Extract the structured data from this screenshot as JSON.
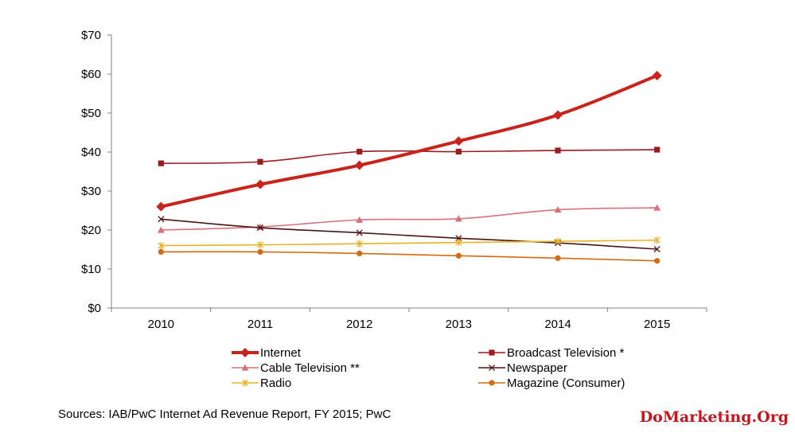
{
  "chart_data": {
    "type": "line",
    "x": [
      "2010",
      "2011",
      "2012",
      "2013",
      "2014",
      "2015"
    ],
    "y_ticks": [
      "$0",
      "$10",
      "$20",
      "$30",
      "$40",
      "$50",
      "$60",
      "$70"
    ],
    "ylim": [
      0,
      70
    ],
    "grid": false,
    "legend_position": "bottom",
    "series": [
      {
        "name": "Internet",
        "values": [
          26.0,
          31.7,
          36.6,
          42.8,
          49.5,
          59.6
        ],
        "color": "#c8241c",
        "marker": "diamond",
        "emphasis": true
      },
      {
        "name": "Broadcast Television *",
        "values": [
          37.1,
          37.5,
          40.1,
          40.1,
          40.4,
          40.6
        ],
        "color": "#9b1b1f",
        "marker": "square"
      },
      {
        "name": "Cable Television **",
        "values": [
          20.0,
          20.8,
          22.6,
          22.9,
          25.2,
          25.7
        ],
        "color": "#d9707a",
        "marker": "triangle"
      },
      {
        "name": "Newspaper",
        "values": [
          22.8,
          20.6,
          19.3,
          17.9,
          16.7,
          15.1
        ],
        "color": "#4a1414",
        "marker": "x"
      },
      {
        "name": "Radio",
        "values": [
          16.0,
          16.2,
          16.5,
          16.8,
          17.1,
          17.4
        ],
        "color": "#e8b326",
        "marker": "star"
      },
      {
        "name": "Magazine (Consumer)",
        "values": [
          14.4,
          14.4,
          14.0,
          13.4,
          12.8,
          12.1
        ],
        "color": "#d46b12",
        "marker": "circle"
      }
    ]
  },
  "source_note": "Sources: IAB/PwC Internet Ad Revenue Report, FY 2015; PwC",
  "watermark": "DoMarketing.Org"
}
